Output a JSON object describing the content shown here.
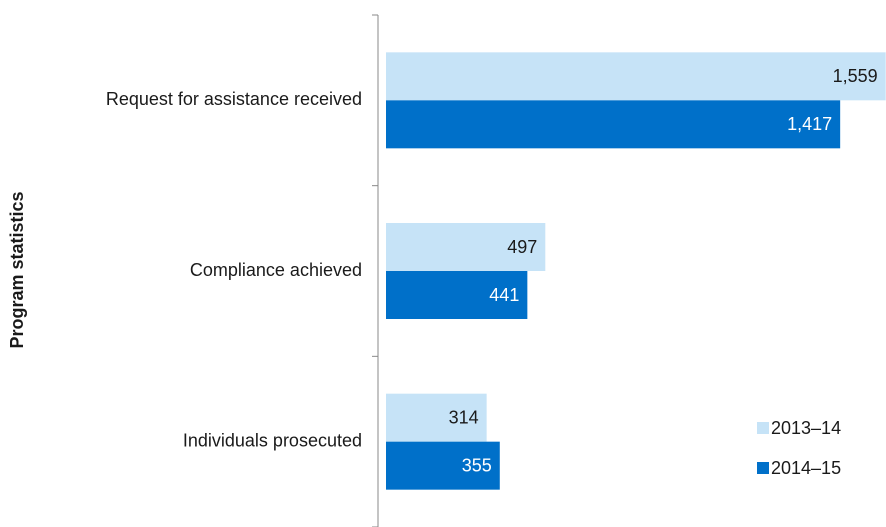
{
  "chart_data": {
    "type": "hbar",
    "y_label": "Program statistics",
    "categories": [
      "Request for assistance received",
      "Compliance achieved",
      "Individuals prosecuted"
    ],
    "series": [
      {
        "name": "2013–14",
        "color": "#c6e3f7",
        "label_color": "#1a1a1a",
        "values": [
          1559,
          497,
          314
        ],
        "value_labels": [
          "1,559",
          "497",
          "314"
        ]
      },
      {
        "name": "2014–15",
        "color": "#0070c9",
        "label_color": "#ffffff",
        "values": [
          1417,
          441,
          355
        ],
        "value_labels": [
          "1,417",
          "441",
          "355"
        ]
      }
    ],
    "xlim": [
      0,
      1560
    ],
    "legend": "lower right"
  }
}
